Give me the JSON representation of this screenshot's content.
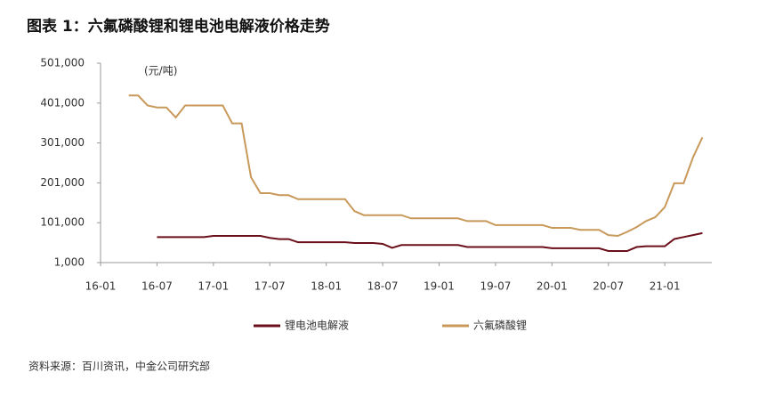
{
  "chart_data": {
    "type": "line",
    "title": "图表 1：六氟磷酸锂和锂电池电解液价格走势",
    "unit_label": "(元/吨)",
    "source": "资料来源：百川资讯，中金公司研究部",
    "x": [
      "16-04",
      "16-05",
      "16-06",
      "16-07",
      "16-08",
      "16-09",
      "16-10",
      "16-11",
      "16-12",
      "17-01",
      "17-02",
      "17-03",
      "17-04",
      "17-05",
      "17-06",
      "17-07",
      "17-08",
      "17-09",
      "17-10",
      "17-11",
      "17-12",
      "18-01",
      "18-02",
      "18-03",
      "18-04",
      "18-05",
      "18-06",
      "18-07",
      "18-08",
      "18-09",
      "18-10",
      "18-11",
      "18-12",
      "19-01",
      "19-02",
      "19-03",
      "19-04",
      "19-05",
      "19-06",
      "19-07",
      "19-08",
      "19-09",
      "19-10",
      "19-11",
      "19-12",
      "20-01",
      "20-02",
      "20-03",
      "20-04",
      "20-05",
      "20-06",
      "20-07",
      "20-08",
      "20-09",
      "20-10",
      "20-11",
      "20-12",
      "21-01",
      "21-02",
      "21-03",
      "21-04",
      "21-05"
    ],
    "series": [
      {
        "name": "锂电池电解液",
        "color": "#6b0f1a",
        "values": [
          null,
          null,
          null,
          65000,
          65000,
          65000,
          65000,
          65000,
          65000,
          68000,
          68000,
          68000,
          68000,
          68000,
          68000,
          63000,
          60000,
          60000,
          52000,
          52000,
          52000,
          52000,
          52000,
          52000,
          50000,
          50000,
          50000,
          48000,
          38000,
          45000,
          45000,
          45000,
          45000,
          45000,
          45000,
          45000,
          40000,
          40000,
          40000,
          40000,
          40000,
          40000,
          40000,
          40000,
          40000,
          37000,
          37000,
          37000,
          37000,
          37000,
          37000,
          30000,
          30000,
          30000,
          40000,
          42000,
          42000,
          42000,
          60000,
          65000,
          70000,
          75000
        ]
      },
      {
        "name": "六氟磷酸锂",
        "color": "#c8995a",
        "values": [
          420000,
          420000,
          395000,
          390000,
          390000,
          365000,
          395000,
          395000,
          395000,
          395000,
          395000,
          350000,
          350000,
          215000,
          175000,
          175000,
          170000,
          170000,
          160000,
          160000,
          160000,
          160000,
          160000,
          160000,
          130000,
          120000,
          120000,
          120000,
          120000,
          120000,
          112000,
          112000,
          112000,
          112000,
          112000,
          112000,
          105000,
          105000,
          105000,
          95000,
          95000,
          95000,
          95000,
          95000,
          95000,
          88000,
          88000,
          88000,
          83000,
          83000,
          83000,
          70000,
          68000,
          78000,
          90000,
          105000,
          115000,
          140000,
          200000,
          200000,
          265000,
          315000
        ]
      }
    ],
    "xlim": [
      "16-01",
      "21-06"
    ],
    "xticks": [
      "16-01",
      "16-07",
      "17-01",
      "17-07",
      "18-01",
      "18-07",
      "19-01",
      "19-07",
      "20-01",
      "20-07",
      "21-01"
    ],
    "ylim": [
      1000,
      501000
    ],
    "yticks": [
      {
        "value": 1000,
        "label": "1,000"
      },
      {
        "value": 101000,
        "label": "101,000"
      },
      {
        "value": 201000,
        "label": "201,000"
      },
      {
        "value": 301000,
        "label": "301,000"
      },
      {
        "value": 401000,
        "label": "401,000"
      },
      {
        "value": 501000,
        "label": "501,000"
      }
    ],
    "grid": false
  }
}
